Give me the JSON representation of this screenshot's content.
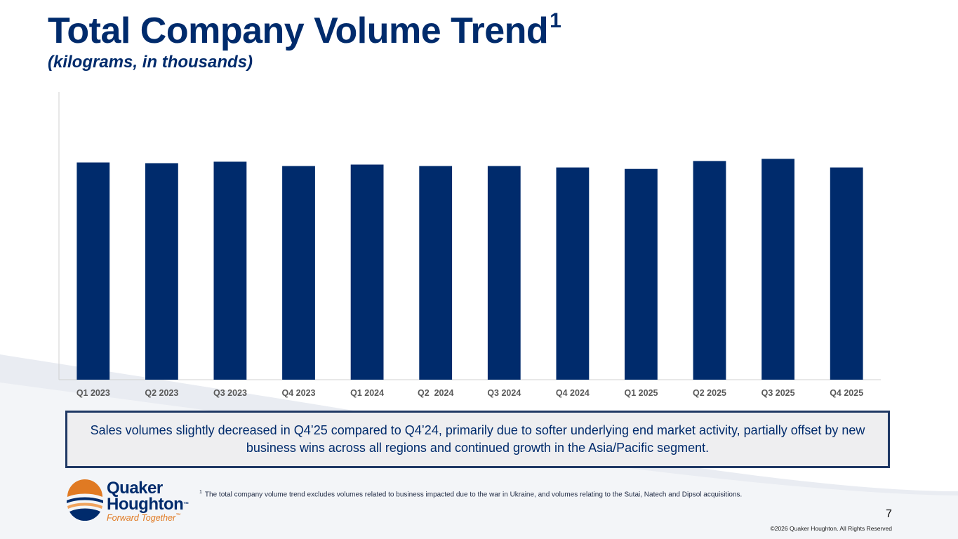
{
  "slide": {
    "title": "Total Company Volume Trend",
    "title_superscript": "1",
    "subtitle": "(kilograms, in thousands)",
    "callout": "Sales volumes slightly decreased in Q4’25 compared to Q4’24, primarily due to softer underlying end market activity, partially offset by new business wins across all regions and continued growth in the Asia/Pacific segment.",
    "footnote_marker": "1",
    "footnote": "The total company volume trend excludes volumes related to business impacted due to the war in Ukraine, and volumes relating to the Sutai, Natech and Dipsol acquisitions.",
    "page_number": "7",
    "copyright": "©2026 Quaker Houghton. All Rights Reserved"
  },
  "logo": {
    "line1": "Quaker",
    "line2": "Houghton",
    "trademark": "™",
    "tagline": "Forward Together",
    "tagline_trademark": "™"
  },
  "colors": {
    "bar": "#002b6c",
    "title": "#002b6c",
    "axis_label": "#595959",
    "logo_orange": "#e07a23",
    "logo_blue": "#002b6c"
  },
  "chart_data": {
    "type": "bar",
    "title": "",
    "xlabel": "",
    "ylabel": "",
    "categories": [
      "Q1 2023",
      "Q2 2023",
      "Q3 2023",
      "Q4 2023",
      "Q1 2024",
      "Q2  2024",
      "Q3 2024",
      "Q4 2024",
      "Q1 2025",
      "Q2 2025",
      "Q3 2025",
      "Q4 2025"
    ],
    "values": [
      302,
      301,
      303,
      297,
      299,
      297,
      297,
      295,
      293,
      304,
      307,
      295
    ],
    "ylim": [
      0,
      400
    ],
    "grid": false,
    "legend": "none",
    "value_labels_shown": false
  }
}
